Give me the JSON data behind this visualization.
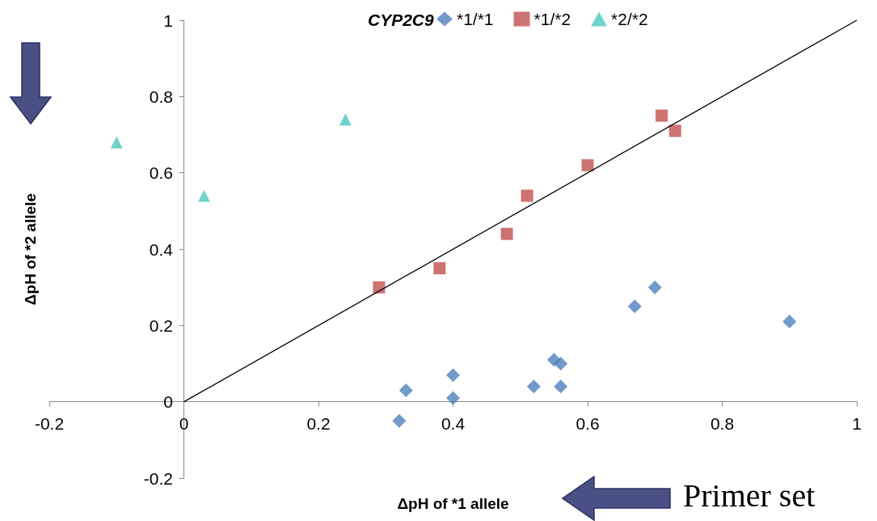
{
  "chart_data": {
    "type": "scatter",
    "xlabel": "ΔpH of *1 allele",
    "ylabel": "ΔpH of *2 allele",
    "legend_title": "CYP2C9",
    "legend": "top",
    "grid": false,
    "xlim": [
      -0.2,
      1
    ],
    "xticks": [
      -0.2,
      0,
      0.2,
      0.4,
      0.6,
      0.8,
      1
    ],
    "ylim": [
      -0.2,
      1
    ],
    "yticks": [
      -0.2,
      0,
      0.2,
      0.4,
      0.6,
      0.8,
      1
    ],
    "annotations": [
      "Primer set"
    ],
    "series": [
      {
        "name": "*1/*1",
        "color": "#4f81bd",
        "marker": "diamond",
        "x": [
          0.32,
          0.33,
          0.4,
          0.4,
          0.52,
          0.56,
          0.55,
          0.56,
          0.67,
          0.7,
          0.9
        ],
        "values": [
          -0.05,
          0.03,
          0.01,
          0.07,
          0.04,
          0.04,
          0.11,
          0.1,
          0.25,
          0.3,
          0.21
        ]
      },
      {
        "name": "*1/*2",
        "color": "#c0504d",
        "marker": "square",
        "x": [
          0.29,
          0.38,
          0.48,
          0.51,
          0.6,
          0.71,
          0.73
        ],
        "values": [
          0.3,
          0.35,
          0.44,
          0.54,
          0.62,
          0.75,
          0.71
        ]
      },
      {
        "name": "*2/*2",
        "color": "#4bc9bb",
        "marker": "triangle",
        "x": [
          -0.1,
          0.03,
          0.24
        ],
        "values": [
          0.68,
          0.54,
          0.74
        ]
      },
      {
        "type": "line",
        "color": "#000000",
        "marker": "none",
        "line_style": "solid",
        "x": [
          0,
          1
        ],
        "values": [
          0,
          1
        ]
      }
    ]
  }
}
